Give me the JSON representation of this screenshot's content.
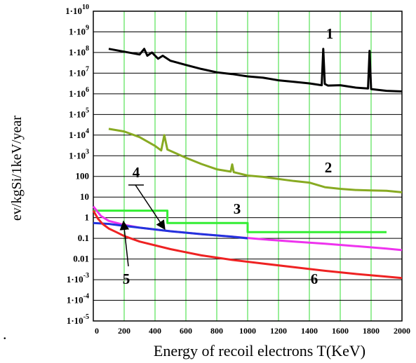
{
  "chart_data": {
    "type": "line",
    "title": "",
    "xlabel": "Energy of recoil electrons T(KeV)",
    "ylabel": "ev/kgSi/1keV/year",
    "xlim": [
      0,
      2000
    ],
    "ylim_log10": [
      -5,
      10
    ],
    "y_scale": "log",
    "grid": true,
    "grid_color": "#33dd33",
    "x_ticks": [
      "0",
      "200",
      "400",
      "600",
      "800",
      "1000",
      "1200",
      "1400",
      "1600",
      "1800",
      "2000"
    ],
    "y_ticks": [
      {
        "base": "1·10",
        "exp": "10"
      },
      {
        "base": "1·10",
        "exp": "9"
      },
      {
        "base": "1·10",
        "exp": "8"
      },
      {
        "base": "1·10",
        "exp": "7"
      },
      {
        "base": "1·10",
        "exp": "6"
      },
      {
        "base": "1·10",
        "exp": "5"
      },
      {
        "base": "1·10",
        "exp": "4"
      },
      {
        "base": "1·10",
        "exp": "3"
      },
      {
        "base": "100",
        "exp": ""
      },
      {
        "base": "10",
        "exp": ""
      },
      {
        "base": "1",
        "exp": ""
      },
      {
        "base": "0.1",
        "exp": ""
      },
      {
        "base": "0.01",
        "exp": ""
      },
      {
        "base": "1·10",
        "exp": "-3"
      },
      {
        "base": "1·10",
        "exp": "-4"
      },
      {
        "base": "1·10",
        "exp": "-5"
      }
    ],
    "series": [
      {
        "label": "1",
        "color": "#000000",
        "x": [
          100,
          300,
          330,
          350,
          380,
          420,
          450,
          500,
          600,
          700,
          800,
          900,
          1000,
          1100,
          1200,
          1300,
          1400,
          1480,
          1490,
          1500,
          1520,
          1600,
          1700,
          1780,
          1790,
          1800,
          1900,
          2000
        ],
        "y": [
          150000000.0,
          80000000.0,
          150000000.0,
          70000000.0,
          100000000.0,
          50000000.0,
          70000000.0,
          40000000.0,
          25000000.0,
          16000000.0,
          11000000.0,
          9000000.0,
          7000000.0,
          6000000.0,
          4500000.0,
          3800000.0,
          3200000.0,
          2600000.0,
          150000000.0,
          3000000.0,
          2500000.0,
          2600000.0,
          2000000.0,
          1800000.0,
          120000000.0,
          1700000.0,
          1400000.0,
          1300000.0
        ],
        "peaks_note": ""
      },
      {
        "label": "2",
        "color": "#88aa22",
        "x": [
          100,
          200,
          300,
          400,
          440,
          460,
          480,
          600,
          700,
          800,
          890,
          900,
          910,
          1000,
          1100,
          1200,
          1300,
          1400,
          1500,
          1600,
          1700,
          1800,
          1900,
          2000
        ],
        "y": [
          20000,
          15000,
          8000,
          3000,
          1800,
          10000,
          2000,
          800,
          400,
          220,
          170,
          380,
          160,
          110,
          95,
          75,
          60,
          50,
          30,
          25,
          22,
          21,
          20,
          17
        ]
      },
      {
        "label": "3",
        "color": "#33ee33",
        "x": [
          0,
          480,
          480,
          1000,
          1000,
          1900
        ],
        "y": [
          2.2,
          2.2,
          0.55,
          0.55,
          0.2,
          0.2
        ]
      },
      {
        "label": "4",
        "color": "#ee33ee",
        "x": [
          0,
          50,
          100,
          200,
          300,
          500,
          700,
          900,
          1100,
          1300,
          1500,
          1700,
          1900,
          2000
        ],
        "y": [
          3.5,
          1.2,
          0.7,
          0.45,
          0.33,
          0.22,
          0.16,
          0.12,
          0.09,
          0.07,
          0.055,
          0.042,
          0.032,
          0.027
        ]
      },
      {
        "label": "",
        "color": "#2233dd",
        "x": [
          0,
          100,
          200,
          300,
          500,
          700,
          900,
          1000
        ],
        "y": [
          0.55,
          0.5,
          0.4,
          0.33,
          0.22,
          0.16,
          0.12,
          0.1
        ]
      },
      {
        "label": "6",
        "color": "#ee2222",
        "x": [
          0,
          30,
          60,
          100,
          150,
          200,
          300,
          500,
          700,
          900,
          1100,
          1300,
          1500,
          1700,
          1900,
          2000
        ],
        "y": [
          2.2,
          0.9,
          0.5,
          0.3,
          0.2,
          0.13,
          0.07,
          0.03,
          0.015,
          0.009,
          0.006,
          0.004,
          0.0027,
          0.0019,
          0.0014,
          0.0012
        ]
      }
    ],
    "annotations": [
      {
        "label": "1"
      },
      {
        "label": "2"
      },
      {
        "label": "3"
      },
      {
        "label": "4"
      },
      {
        "label": "5"
      },
      {
        "label": "6"
      }
    ],
    "dot_marker": "."
  }
}
